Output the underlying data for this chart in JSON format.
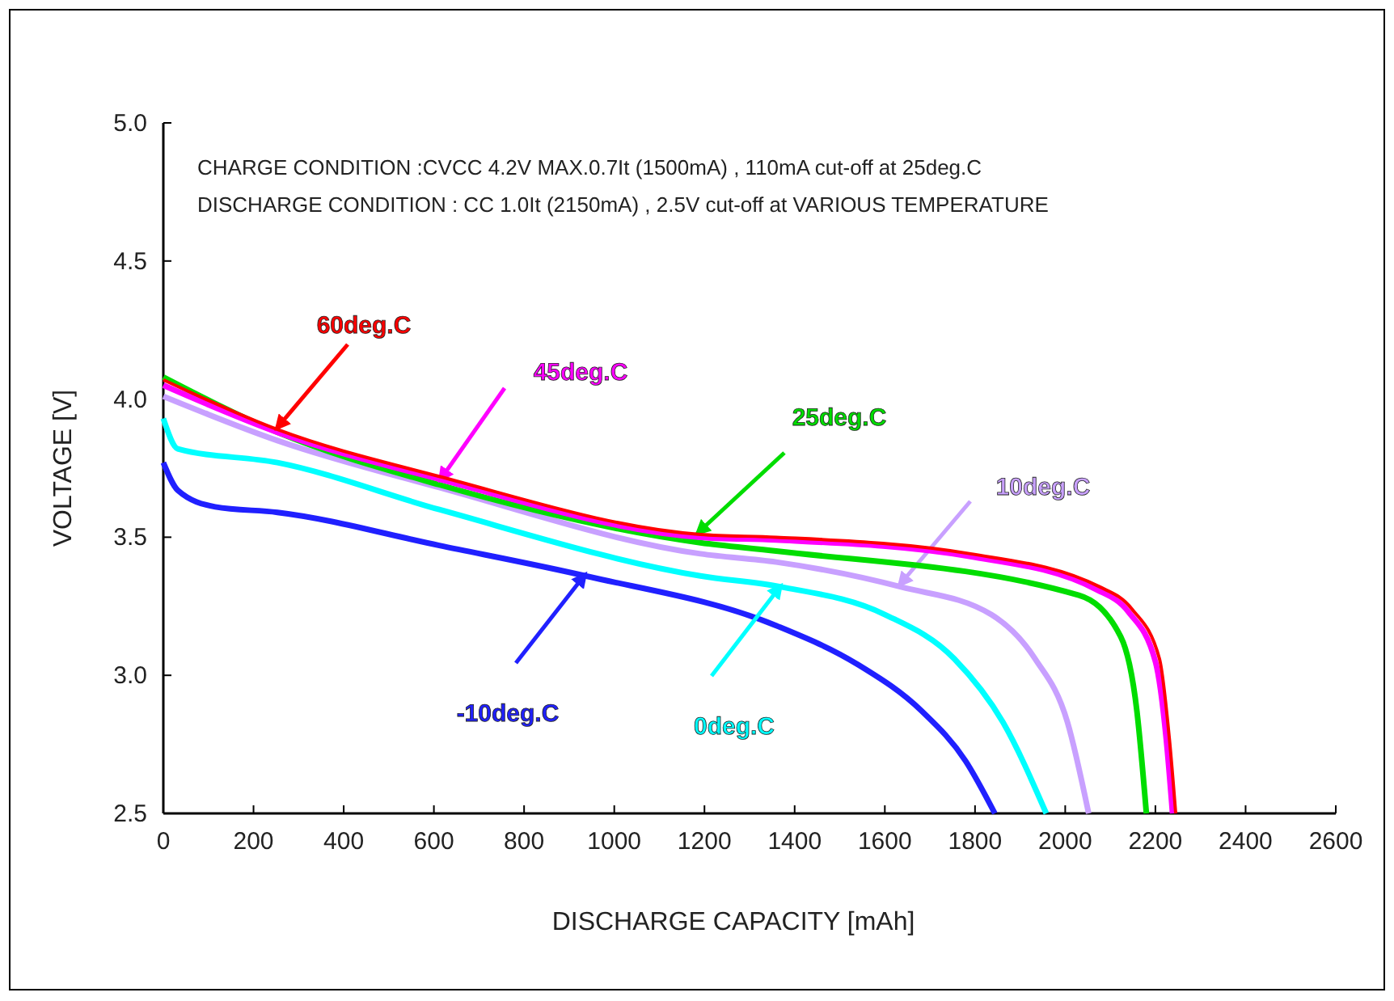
{
  "chart_data": {
    "type": "line",
    "xlabel": "DISCHARGE CAPACITY  [mAh]",
    "ylabel": "VOLTAGE  [V]",
    "annotations": [
      "CHARGE CONDITION :CVCC 4.2V MAX.0.7It (1500mA) , 110mA cut-off at  25deg.C",
      "DISCHARGE CONDITION : CC 1.0It (2150mA) , 2.5V cut-off at  VARIOUS TEMPERATURE"
    ],
    "xlim": [
      0,
      2600
    ],
    "xticks": [
      0,
      200,
      400,
      600,
      800,
      1000,
      1200,
      1400,
      1600,
      1800,
      2000,
      2200,
      2400,
      2600
    ],
    "ylim": [
      2.5,
      5.0
    ],
    "yticks": [
      {
        "value": 2.5,
        "label": "2.5"
      },
      {
        "value": 3.0,
        "label": "3.0"
      },
      {
        "value": 3.5,
        "label": "3.5"
      },
      {
        "value": 4.0,
        "label": "4.0"
      },
      {
        "value": 4.5,
        "label": "4.5"
      },
      {
        "value": 5.0,
        "label": "5.0"
      }
    ],
    "grid": false,
    "marker": "none",
    "line_style": "solid",
    "series": [
      {
        "name": "60deg.C",
        "color": "#ff0000",
        "x": [
          0,
          253,
          612,
          1191,
          1359,
          1790,
          2077,
          2148,
          2209,
          2231,
          2245
        ],
        "values": [
          4.07,
          3.89,
          3.72,
          3.51,
          3.5,
          3.44,
          3.32,
          3.24,
          3.06,
          2.77,
          2.5
        ]
      },
      {
        "name": "45deg.C",
        "color": "#ff00ff",
        "x": [
          0,
          253,
          612,
          1191,
          1359,
          1790,
          2070,
          2140,
          2200,
          2224,
          2238
        ],
        "values": [
          4.05,
          3.88,
          3.71,
          3.5,
          3.49,
          3.43,
          3.31,
          3.23,
          3.05,
          2.77,
          2.5
        ]
      },
      {
        "name": "25deg.C",
        "color": "#00dd00",
        "x": [
          0,
          253,
          612,
          1191,
          1359,
          2030,
          2123,
          2159,
          2180
        ],
        "values": [
          4.08,
          3.88,
          3.69,
          3.48,
          3.45,
          3.29,
          3.14,
          2.87,
          2.5
        ]
      },
      {
        "name": "10deg.C",
        "color": "#c8a0ff",
        "x": [
          0,
          253,
          612,
          1191,
          1359,
          1636,
          1836,
          1933,
          2005,
          2052
        ],
        "values": [
          4.01,
          3.85,
          3.68,
          3.44,
          3.41,
          3.32,
          3.22,
          3.06,
          2.83,
          2.5
        ]
      },
      {
        "name": "0deg.C",
        "color": "#00ffff",
        "x": [
          0,
          32,
          253,
          612,
          1191,
          1370,
          1600,
          1754,
          1862,
          1958
        ],
        "values": [
          3.93,
          3.82,
          3.77,
          3.6,
          3.36,
          3.32,
          3.22,
          3.06,
          2.83,
          2.5
        ]
      },
      {
        "name": "-10deg.C",
        "color": "#2020ff",
        "x": [
          0,
          32,
          115,
          253,
          612,
          936,
          1359,
          1539,
          1682,
          1779,
          1844
        ],
        "values": [
          3.77,
          3.67,
          3.61,
          3.59,
          3.47,
          3.36,
          3.18,
          3.04,
          2.87,
          2.69,
          2.5
        ]
      }
    ]
  }
}
